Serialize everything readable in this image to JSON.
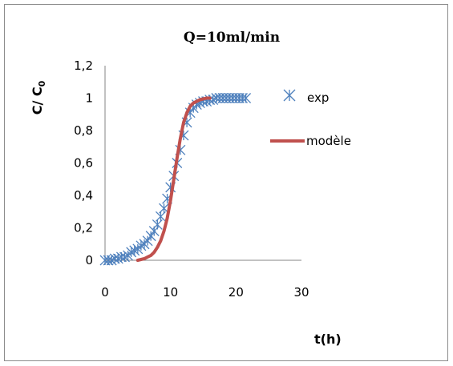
{
  "chart_data": {
    "type": "scatter",
    "title": "Q=10ml/min",
    "ylabel": {
      "main": "C/ C",
      "sub": "0"
    },
    "xlabel": "t(h)",
    "xlim": [
      0,
      30
    ],
    "ylim": [
      0,
      1.2
    ],
    "xticks": [
      "0",
      "10",
      "20",
      "30"
    ],
    "yticks": [
      "0",
      "0,2",
      "0,4",
      "0,6",
      "0,8",
      "1",
      "1,2"
    ],
    "grid": false,
    "legend_position": "right",
    "series": [
      {
        "name": "exp",
        "kind": "scatter",
        "marker": "asterisk",
        "color": "#4f81bd",
        "x": [
          0,
          0.5,
          1,
          1.5,
          2,
          2.5,
          3,
          3.5,
          4,
          4.5,
          5,
          5.5,
          6,
          6.5,
          7,
          7.5,
          8,
          8.5,
          9,
          9.5,
          10,
          10.5,
          11,
          11.5,
          12,
          12.5,
          13,
          13.5,
          14,
          14.5,
          15,
          15.5,
          16,
          16.5,
          17,
          17.5,
          18,
          18.5,
          19,
          19.5,
          20,
          20.5,
          21,
          21.5
        ],
        "y": [
          0,
          0,
          0,
          0.01,
          0.01,
          0.02,
          0.02,
          0.03,
          0.05,
          0.06,
          0.07,
          0.09,
          0.1,
          0.12,
          0.15,
          0.18,
          0.22,
          0.27,
          0.32,
          0.38,
          0.45,
          0.52,
          0.6,
          0.68,
          0.77,
          0.85,
          0.91,
          0.94,
          0.96,
          0.97,
          0.98,
          0.98,
          0.99,
          0.99,
          1,
          1,
          1,
          1,
          1,
          1,
          1,
          1,
          1,
          1
        ]
      },
      {
        "name": "modèle",
        "kind": "line",
        "color": "#c0504d",
        "x": [
          5,
          5.5,
          6,
          6.5,
          7,
          7.5,
          8,
          8.5,
          9,
          9.5,
          10,
          10.5,
          11,
          11.5,
          12,
          12.5,
          13,
          13.5,
          14,
          14.5,
          15,
          15.5,
          16
        ],
        "y": [
          0,
          0.005,
          0.01,
          0.02,
          0.03,
          0.05,
          0.08,
          0.12,
          0.18,
          0.26,
          0.37,
          0.5,
          0.63,
          0.75,
          0.85,
          0.91,
          0.95,
          0.97,
          0.98,
          0.99,
          0.995,
          1,
          1
        ]
      }
    ]
  }
}
